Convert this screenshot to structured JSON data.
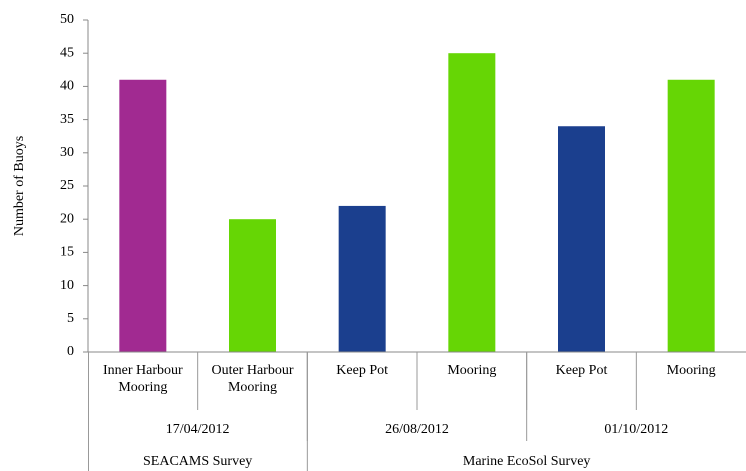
{
  "chart_data": {
    "type": "bar",
    "y_label": "Number of Buoys",
    "ylim": [
      0,
      50
    ],
    "yticks": [
      0,
      5,
      10,
      15,
      20,
      25,
      30,
      35,
      40,
      45,
      50
    ],
    "groups": [
      {
        "name": "SEACAMS Survey",
        "groups": [
          {
            "name": "17/04/2012",
            "categories": [
              "Inner Harbour Mooring",
              "Outer Harbour Mooring"
            ],
            "values": [
              41,
              20
            ],
            "colors": [
              "#a12a91",
              "#66d605"
            ]
          }
        ]
      },
      {
        "name": "Marine EcoSol Survey",
        "groups": [
          {
            "name": "26/08/2012",
            "categories": [
              "Keep Pot",
              "Mooring"
            ],
            "values": [
              22,
              45
            ],
            "colors": [
              "#1b3f8e",
              "#66d605"
            ]
          },
          {
            "name": "01/10/2012",
            "categories": [
              "Keep Pot",
              "Mooring"
            ],
            "values": [
              34,
              41
            ],
            "colors": [
              "#1b3f8e",
              "#66d605"
            ]
          }
        ]
      }
    ]
  }
}
